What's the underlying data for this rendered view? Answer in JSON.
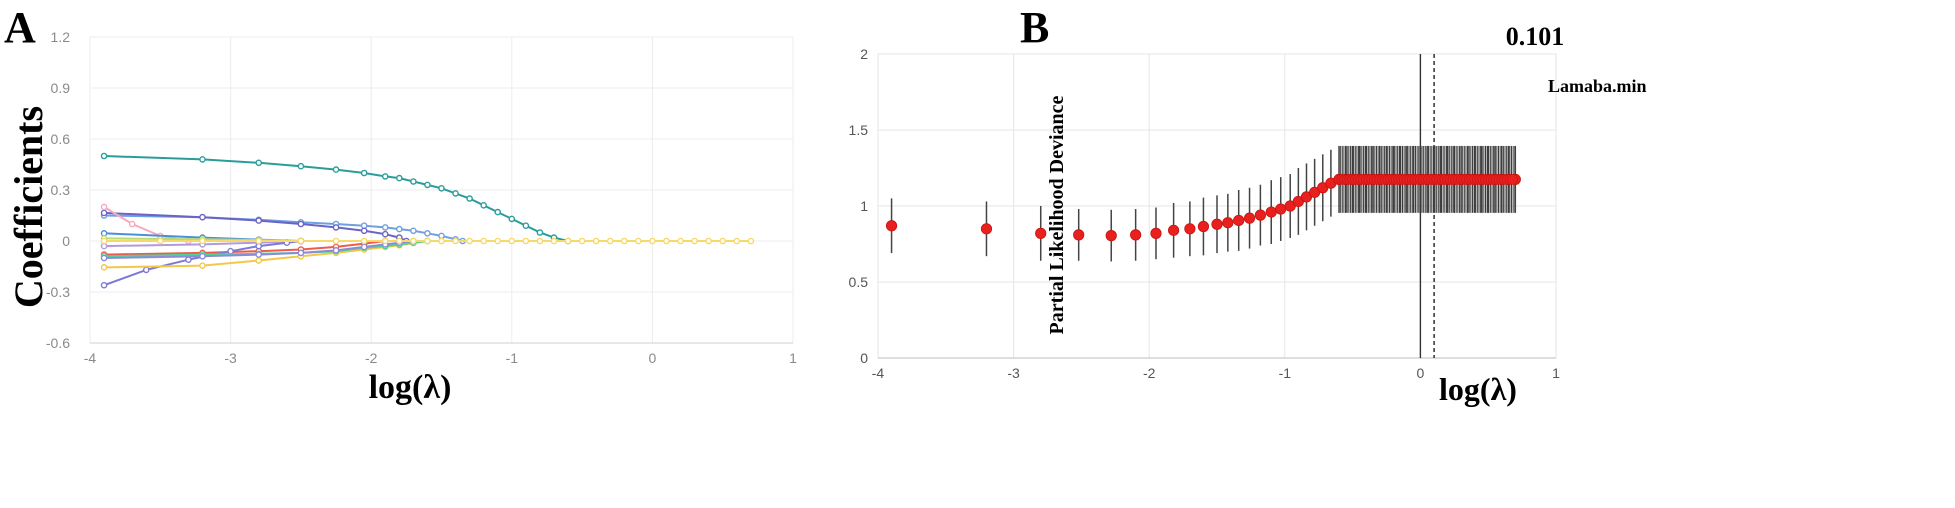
{
  "chart_data": [
    {
      "panel": "A",
      "type": "line",
      "xlabel": "log(λ)",
      "ylabel": "Coefficients",
      "xlim": [
        -4,
        1
      ],
      "ylim": [
        -0.6,
        1.2
      ],
      "x_ticks": [
        "-4",
        "-3",
        "-2",
        "-1",
        "0",
        "1"
      ],
      "y_ticks": [
        "1.2",
        "0.9",
        "0.6",
        "0.3",
        "0",
        "-0.3",
        "-0.6"
      ],
      "grid": true,
      "series": [
        {
          "color": "#2a9d9a",
          "x": [
            -3.9,
            -3.2,
            -2.8,
            -2.5,
            -2.25,
            -2.05,
            -1.9,
            -1.8,
            -1.7,
            -1.6,
            -1.5,
            -1.4,
            -1.3,
            -1.2,
            -1.1,
            -1.0,
            -0.9,
            -0.8,
            -0.7,
            -0.6
          ],
          "y": [
            0.5,
            0.48,
            0.46,
            0.44,
            0.42,
            0.4,
            0.38,
            0.37,
            0.35,
            0.33,
            0.31,
            0.28,
            0.25,
            0.21,
            0.17,
            0.13,
            0.09,
            0.05,
            0.02,
            0.0
          ]
        },
        {
          "color": "#6f9fe0",
          "x": [
            -3.9,
            -3.2,
            -2.8,
            -2.5,
            -2.25,
            -2.05,
            -1.9,
            -1.8,
            -1.7,
            -1.6,
            -1.5,
            -1.4,
            -1.35
          ],
          "y": [
            0.15,
            0.14,
            0.125,
            0.11,
            0.1,
            0.09,
            0.08,
            0.07,
            0.06,
            0.045,
            0.03,
            0.01,
            0.0
          ]
        },
        {
          "color": "#6a63c8",
          "x": [
            -3.9,
            -3.2,
            -2.8,
            -2.5,
            -2.25,
            -2.05,
            -1.9,
            -1.8,
            -1.75
          ],
          "y": [
            0.165,
            0.14,
            0.12,
            0.1,
            0.08,
            0.06,
            0.04,
            0.02,
            0.0
          ]
        },
        {
          "color": "#f7a9bd",
          "x": [
            -3.9,
            -3.7,
            -3.5,
            -3.3
          ],
          "y": [
            0.2,
            0.1,
            0.03,
            0.0
          ]
        },
        {
          "color": "#4a8fd9",
          "x": [
            -3.9,
            -3.2,
            -2.8,
            -2.5
          ],
          "y": [
            0.045,
            0.02,
            0.008,
            0.0
          ]
        },
        {
          "color": "#b7d97a",
          "x": [
            -3.9,
            -3.2,
            -2.8,
            -2.5
          ],
          "y": [
            0.015,
            0.01,
            0.005,
            0.0
          ]
        },
        {
          "color": "#ee5b4a",
          "x": [
            -3.9,
            -3.2,
            -2.8,
            -2.5,
            -2.25,
            -2.05,
            -1.9
          ],
          "y": [
            -0.08,
            -0.07,
            -0.06,
            -0.05,
            -0.035,
            -0.015,
            0.0
          ]
        },
        {
          "color": "#b39ad9",
          "x": [
            -3.9,
            -3.2,
            -2.8,
            -2.5
          ],
          "y": [
            -0.03,
            -0.02,
            -0.01,
            0.0
          ]
        },
        {
          "color": "#7b79d6",
          "x": [
            -3.9,
            -3.6,
            -3.3,
            -3.0,
            -2.8,
            -2.6,
            -2.5
          ],
          "y": [
            -0.26,
            -0.17,
            -0.11,
            -0.06,
            -0.03,
            -0.01,
            0.0
          ]
        },
        {
          "color": "#f3c84a",
          "x": [
            -3.9,
            -3.2,
            -2.8,
            -2.5,
            -2.25,
            -2.05,
            -1.9,
            -1.8,
            -1.7,
            -1.6
          ],
          "y": [
            -0.155,
            -0.145,
            -0.115,
            -0.09,
            -0.07,
            -0.05,
            -0.035,
            -0.025,
            -0.012,
            0.0
          ]
        },
        {
          "color": "#4fd39a",
          "x": [
            -3.9,
            -3.2,
            -2.8,
            -2.5,
            -2.25,
            -2.05,
            -1.9,
            -1.8,
            -1.7,
            -1.6
          ],
          "y": [
            -0.09,
            -0.08,
            -0.075,
            -0.07,
            -0.06,
            -0.04,
            -0.03,
            -0.02,
            -0.01,
            0.0
          ]
        },
        {
          "color": "#8d8bd8",
          "x": [
            -3.9,
            -3.2,
            -2.8,
            -2.5,
            -2.25,
            -2.05,
            -1.9,
            -1.8,
            -1.7
          ],
          "y": [
            -0.1,
            -0.09,
            -0.08,
            -0.07,
            -0.055,
            -0.035,
            -0.02,
            -0.01,
            0.0
          ]
        },
        {
          "color": "#f6d96b",
          "x": [
            -3.9,
            -3.5,
            -3.2,
            -2.8,
            -2.5,
            -2.25,
            -2.05,
            -1.9,
            -1.8,
            -1.7,
            -1.6,
            -1.5,
            -1.4,
            -1.3,
            -1.2,
            -1.1,
            -1.0,
            -0.9,
            -0.8,
            -0.7,
            -0.6,
            -0.5,
            -0.4,
            -0.3,
            -0.2,
            -0.1,
            0.0,
            0.1,
            0.2,
            0.3,
            0.4,
            0.5,
            0.6,
            0.7
          ],
          "y": [
            0,
            0,
            0,
            0,
            0,
            0,
            0,
            0,
            0,
            0,
            0,
            0,
            0,
            0,
            0,
            0,
            0,
            0,
            0,
            0,
            0,
            0,
            0,
            0,
            0,
            0,
            0,
            0,
            0,
            0,
            0,
            0,
            0,
            0
          ]
        }
      ]
    },
    {
      "panel": "B",
      "type": "scatter",
      "xlabel": "log(λ)",
      "ylabel": "Partial Likelihood Deviance",
      "xlim": [
        -4,
        1
      ],
      "ylim": [
        0,
        2
      ],
      "x_ticks": [
        "-4",
        "-3",
        "-2",
        "-1",
        "0",
        "1"
      ],
      "y_ticks": [
        "2",
        "1.5",
        "1",
        "0.5",
        "0"
      ],
      "grid": true,
      "vline_solid_x": 0.0,
      "vline_dashed_x": 0.101,
      "vline_value_label": "0.101",
      "vline_label": "Lamaba.min",
      "points": {
        "x": [
          -3.9,
          -3.2,
          -2.8,
          -2.52,
          -2.28,
          -2.1,
          -1.95,
          -1.82,
          -1.7,
          -1.6,
          -1.5,
          -1.42,
          -1.34,
          -1.26,
          -1.18,
          -1.1,
          -1.03,
          -0.96,
          -0.9,
          -0.84,
          -0.78,
          -0.72,
          -0.66,
          -0.6,
          -0.55,
          -0.5,
          -0.45,
          -0.4,
          -0.35,
          -0.3,
          -0.25,
          -0.2,
          -0.15,
          -0.1,
          -0.05,
          0.0,
          0.05,
          0.1,
          0.15,
          0.2,
          0.25,
          0.3,
          0.35,
          0.4,
          0.45,
          0.5,
          0.55,
          0.6,
          0.65,
          0.7
        ],
        "y": [
          0.87,
          0.85,
          0.82,
          0.81,
          0.805,
          0.81,
          0.82,
          0.84,
          0.85,
          0.865,
          0.88,
          0.89,
          0.905,
          0.92,
          0.94,
          0.96,
          0.98,
          1.0,
          1.03,
          1.06,
          1.09,
          1.12,
          1.15,
          1.175,
          1.175,
          1.175,
          1.175,
          1.175,
          1.175,
          1.175,
          1.175,
          1.175,
          1.175,
          1.175,
          1.175,
          1.175,
          1.175,
          1.175,
          1.175,
          1.175,
          1.175,
          1.175,
          1.175,
          1.175,
          1.175,
          1.175,
          1.175,
          1.175,
          1.175,
          1.175
        ],
        "err": [
          0.18,
          0.18,
          0.18,
          0.17,
          0.17,
          0.17,
          0.17,
          0.18,
          0.18,
          0.19,
          0.19,
          0.19,
          0.2,
          0.2,
          0.2,
          0.21,
          0.21,
          0.21,
          0.22,
          0.22,
          0.22,
          0.22,
          0.22,
          0.22,
          0.22,
          0.22,
          0.22,
          0.22,
          0.22,
          0.22,
          0.22,
          0.22,
          0.22,
          0.22,
          0.22,
          0.22,
          0.22,
          0.22,
          0.22,
          0.22,
          0.22,
          0.22,
          0.22,
          0.22,
          0.22,
          0.22,
          0.22,
          0.22,
          0.22,
          0.22
        ]
      }
    }
  ]
}
